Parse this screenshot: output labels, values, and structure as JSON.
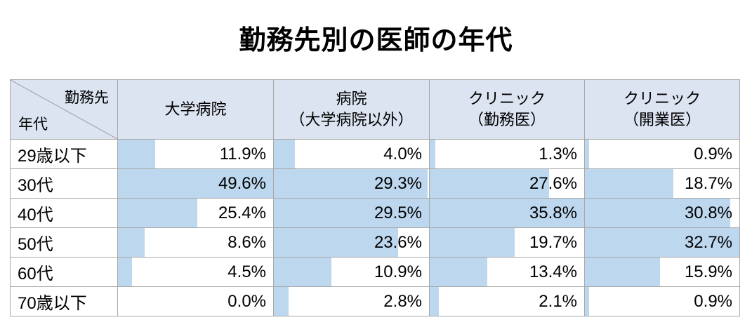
{
  "title": "勤務先別の医師の年代",
  "colors": {
    "bar_fill": "#bdd7ee",
    "header_bg": "#dce3f1",
    "border": "#a8a8a8",
    "text": "#000000"
  },
  "table": {
    "corner": {
      "top_right": "勤務先",
      "bottom_left": "年代"
    },
    "columns": [
      "大学病院",
      "病院\n（大学病院以外）",
      "クリニック\n（勤務医）",
      "クリニック\n（開業医）"
    ],
    "rows": [
      {
        "label": "29歳以下",
        "values": [
          11.9,
          4.0,
          1.3,
          0.9
        ]
      },
      {
        "label": "30代",
        "values": [
          49.6,
          29.3,
          27.6,
          18.7
        ]
      },
      {
        "label": "40代",
        "values": [
          25.4,
          29.5,
          35.8,
          30.8
        ]
      },
      {
        "label": "50代",
        "values": [
          8.6,
          23.6,
          19.7,
          32.7
        ]
      },
      {
        "label": "60代",
        "values": [
          4.5,
          10.9,
          13.4,
          15.9
        ]
      },
      {
        "label": "70歳以下",
        "values": [
          0.0,
          2.8,
          2.1,
          0.9
        ]
      }
    ]
  },
  "chart_data": {
    "type": "table",
    "title": "勤務先別の医師の年代",
    "row_axis_label": "年代",
    "column_axis_label": "勤務先",
    "categories": [
      "29歳以下",
      "30代",
      "40代",
      "50代",
      "60代",
      "70歳以下"
    ],
    "series": [
      {
        "name": "大学病院",
        "values": [
          11.9,
          49.6,
          25.4,
          8.6,
          4.5,
          0.0
        ]
      },
      {
        "name": "病院（大学病院以外）",
        "values": [
          4.0,
          29.3,
          29.5,
          23.6,
          10.9,
          2.8
        ]
      },
      {
        "name": "クリニック（勤務医）",
        "values": [
          1.3,
          27.6,
          35.8,
          19.7,
          13.4,
          2.1
        ]
      },
      {
        "name": "クリニック（開業医）",
        "values": [
          0.9,
          18.7,
          30.8,
          32.7,
          15.9,
          0.9
        ]
      }
    ],
    "value_unit": "%",
    "bar_scaling": "per-column relative to column max",
    "legend_position": "none",
    "grid": "table borders"
  }
}
